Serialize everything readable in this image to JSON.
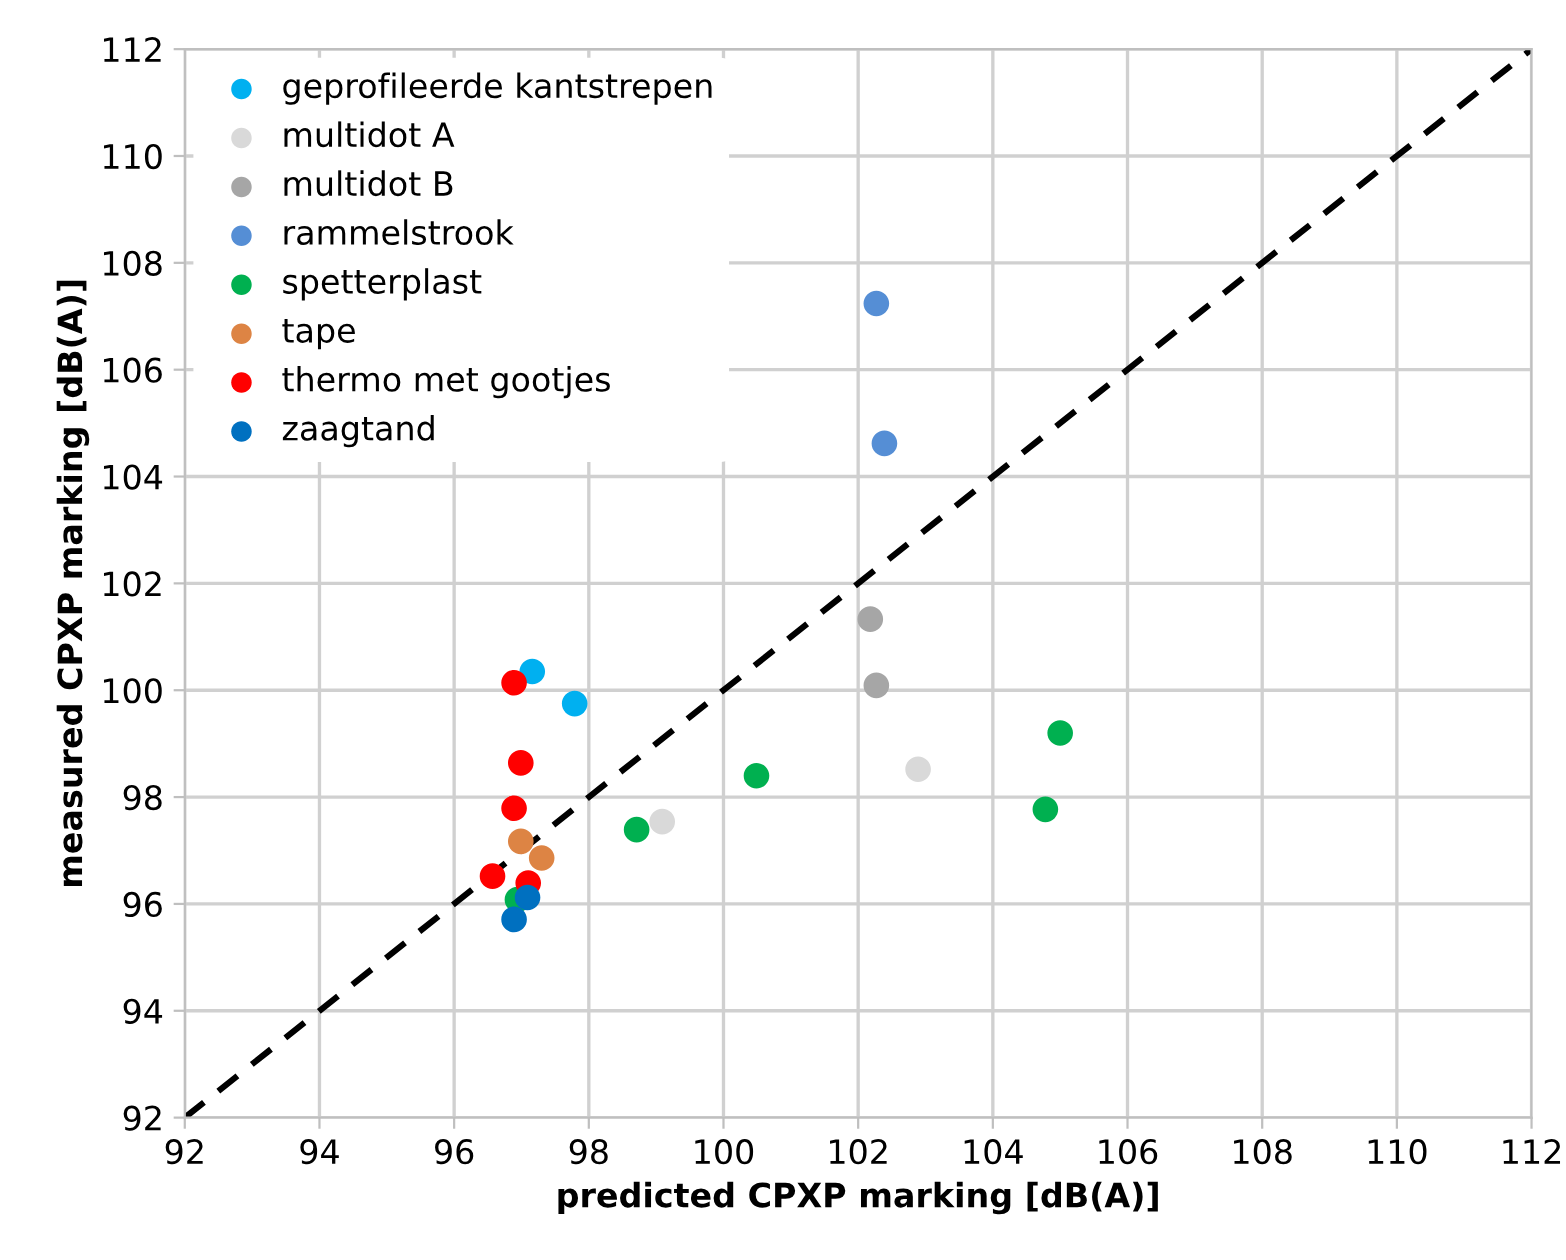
{
  "chart_data": {
    "type": "scatter",
    "xlabel": "predicted CPXP marking [dB(A)]",
    "ylabel": "measured CPXP marking [dB(A)]",
    "xlim": [
      92,
      112
    ],
    "ylim": [
      92,
      112
    ],
    "xticks": [
      92,
      94,
      96,
      98,
      100,
      102,
      104,
      106,
      108,
      110,
      112
    ],
    "yticks": [
      92,
      94,
      96,
      98,
      100,
      102,
      104,
      106,
      108,
      110,
      112
    ],
    "grid": true,
    "legend": "top left",
    "marker": "circle",
    "series": [
      {
        "name": "geprofileerde kantstrepen",
        "color": "#00b0f0",
        "x": [
          97.16,
          97.79
        ],
        "values": [
          100.35,
          99.75
        ]
      },
      {
        "name": "multidot A",
        "color": "#d9d9d9",
        "x": [
          99.09,
          102.89
        ],
        "values": [
          97.54,
          98.52
        ]
      },
      {
        "name": "multidot B",
        "color": "#a6a6a6",
        "x": [
          102.18,
          102.27
        ],
        "values": [
          101.33,
          100.09
        ]
      },
      {
        "name": "rammelstrook",
        "color": "#558ed5",
        "x": [
          102.27,
          102.39
        ],
        "values": [
          107.24,
          104.62
        ]
      },
      {
        "name": "spetterplast",
        "color": "#00b050",
        "x": [
          98.71,
          100.49,
          105.0,
          104.78,
          96.94
        ],
        "values": [
          97.39,
          98.4,
          99.2,
          97.77,
          96.08
        ]
      },
      {
        "name": "tape",
        "color": "#dd8444",
        "x": [
          96.99,
          97.3
        ],
        "values": [
          97.17,
          96.86
        ]
      },
      {
        "name": "thermo met gootjes",
        "color": "#ff0000",
        "x": [
          96.89,
          96.99,
          96.89,
          96.57,
          97.1
        ],
        "values": [
          100.14,
          98.64,
          97.79,
          96.52,
          96.39
        ]
      },
      {
        "name": "zaagtand",
        "color": "#0070c0",
        "x": [
          97.09,
          96.89
        ],
        "values": [
          96.12,
          95.71
        ]
      },
      {
        "type": "line",
        "color": "#000000",
        "line_style": "dashed",
        "marker": "none",
        "x": [
          92,
          112
        ],
        "values": [
          92,
          112
        ]
      }
    ]
  }
}
